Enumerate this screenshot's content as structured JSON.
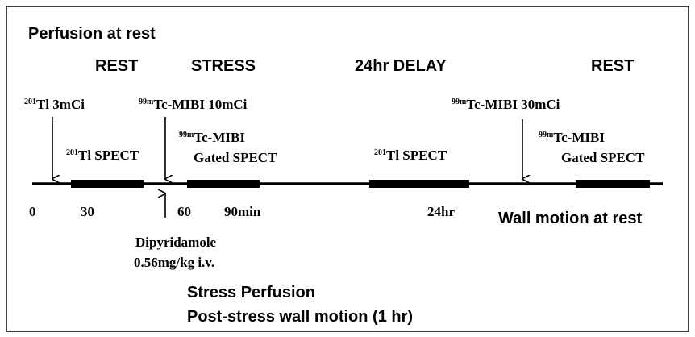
{
  "title": "Perfusion at rest",
  "phases": [
    "REST",
    "STRESS",
    "24hr DELAY",
    "REST"
  ],
  "doses": [
    {
      "sup": "201",
      "text": "Tl 3mCi"
    },
    {
      "sup": "99m",
      "text": "Tc-MIBI 10mCi"
    },
    {
      "sup": "99m",
      "text": "Tc-MIBI 30mCi"
    }
  ],
  "acquisitions": [
    {
      "sup": "201",
      "text": "Tl SPECT"
    },
    {
      "sup": "99m",
      "text": "Tc-MIBI",
      "line2": "Gated SPECT"
    },
    {
      "sup": "201",
      "text": "Tl SPECT"
    },
    {
      "sup": "99m",
      "text": "Tc-MIBI",
      "line2": "Gated SPECT"
    }
  ],
  "time_labels": [
    "0",
    "30",
    "60",
    "90min",
    "24hr"
  ],
  "wall_motion_rest": "Wall motion at rest",
  "stress_agent": [
    "Dipyridamole",
    "0.56mg/kg i.v."
  ],
  "stress_notes": [
    "Stress Perfusion",
    "Post-stress wall motion (1 hr)"
  ]
}
